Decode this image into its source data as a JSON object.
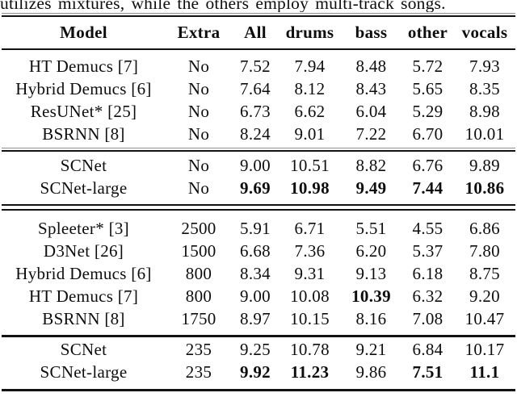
{
  "caption_fragment": "utilizes mixtures, while the others employ multi-track songs.",
  "colors": {
    "text": "#0d0d0d",
    "rule": "#121212",
    "background": "#ffffff"
  },
  "table": {
    "columns": [
      "Model",
      "Extra",
      "All",
      "drums",
      "bass",
      "other",
      "vocals"
    ],
    "sections": [
      {
        "rows": [
          {
            "cells": [
              "HT Demucs [7]",
              "No",
              "7.52",
              "7.94",
              "8.48",
              "5.72",
              "7.93"
            ]
          },
          {
            "cells": [
              "Hybrid Demucs [6]",
              "No",
              "7.64",
              "8.12",
              "8.43",
              "5.65",
              "8.35"
            ]
          },
          {
            "cells": [
              "ResUNet* [25]",
              "No",
              "6.73",
              "6.62",
              "6.04",
              "5.29",
              "8.98"
            ]
          },
          {
            "cells": [
              "BSRNN [8]",
              "No",
              "8.24",
              "9.01",
              "7.22",
              "6.70",
              "10.01"
            ]
          }
        ]
      },
      {
        "rows": [
          {
            "cells": [
              "SCNet",
              "No",
              "9.00",
              "10.51",
              "8.82",
              "6.76",
              "9.89"
            ]
          },
          {
            "cells": [
              "SCNet-large",
              "No",
              "9.69",
              "10.98",
              "9.49",
              "7.44",
              "10.86"
            ]
          }
        ]
      },
      {
        "rows": [
          {
            "cells": [
              "Spleeter* [3]",
              "2500",
              "5.91",
              "6.71",
              "5.51",
              "4.55",
              "6.86"
            ]
          },
          {
            "cells": [
              "D3Net [26]",
              "1500",
              "6.68",
              "7.36",
              "6.20",
              "5.37",
              "7.80"
            ]
          },
          {
            "cells": [
              "Hybrid Demucs [6]",
              "800",
              "8.34",
              "9.31",
              "9.13",
              "6.18",
              "8.75"
            ]
          },
          {
            "cells": [
              "HT Demucs [7]",
              "800",
              "9.00",
              "10.08",
              "10.39",
              "6.32",
              "9.20"
            ]
          },
          {
            "cells": [
              "BSRNN [8]",
              "1750",
              "8.97",
              "10.15",
              "8.16",
              "7.08",
              "10.47"
            ]
          }
        ]
      },
      {
        "rows": [
          {
            "cells": [
              "SCNet",
              "235",
              "9.25",
              "10.78",
              "9.21",
              "6.84",
              "10.17"
            ]
          },
          {
            "cells": [
              "SCNet-large",
              "235",
              "9.92",
              "11.23",
              "9.86",
              "7.51",
              "11.1"
            ]
          }
        ]
      }
    ]
  }
}
